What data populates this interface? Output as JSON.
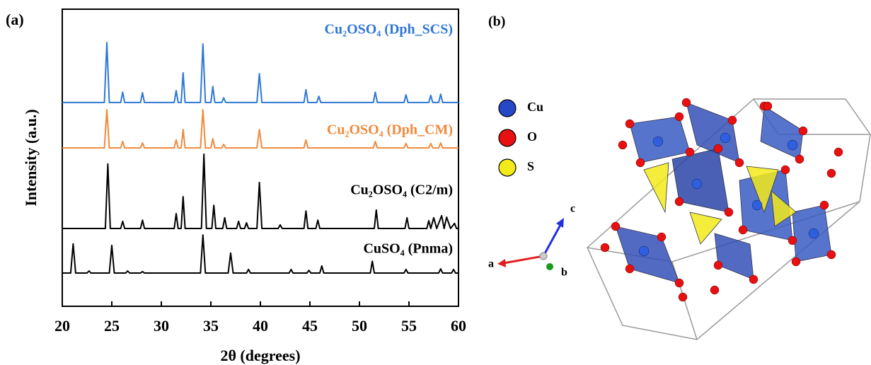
{
  "chart_data": {
    "type": "line",
    "panel_label": "(a)",
    "xlabel": "2θ (degrees)",
    "ylabel": "Intensity (a.u.)",
    "xlim": [
      20,
      60
    ],
    "xticks": [
      20,
      25,
      30,
      35,
      40,
      45,
      50,
      55,
      60
    ],
    "ylim": [
      0,
      100
    ],
    "series": [
      {
        "name": "Cu₂OSO₄ (Dph_SCS)",
        "color": "#2f78d6",
        "x": [
          20,
          24.25,
          24.5,
          24.75,
          25.9,
          26.1,
          26.3,
          27.9,
          28.1,
          28.3,
          31.3,
          31.5,
          31.7,
          32.0,
          32.2,
          32.4,
          33.95,
          34.2,
          34.45,
          35.0,
          35.2,
          35.4,
          36.1,
          36.3,
          36.5,
          39.65,
          39.9,
          40.15,
          44.4,
          44.6,
          44.8,
          45.7,
          45.9,
          46.1,
          51.4,
          51.6,
          51.8,
          54.5,
          54.7,
          54.9,
          57.0,
          57.2,
          57.4,
          58.0,
          58.2,
          58.4,
          60
        ],
        "values": [
          68.6,
          68.6,
          88.8,
          68.6,
          68.6,
          72.1,
          68.6,
          68.6,
          71.9,
          68.6,
          68.6,
          72.6,
          68.6,
          68.6,
          78.6,
          68.6,
          68.6,
          88.3,
          68.6,
          68.6,
          74.0,
          68.6,
          68.6,
          70.2,
          68.6,
          68.6,
          78.3,
          68.6,
          68.6,
          72.9,
          68.6,
          68.6,
          70.7,
          68.6,
          68.6,
          72.1,
          68.6,
          68.6,
          71.2,
          68.6,
          68.6,
          71.0,
          68.6,
          68.6,
          71.4,
          68.6,
          68.6
        ]
      },
      {
        "name": "Cu₂OSO₄ (Dph_CM)",
        "color": "#f08a3c",
        "x": [
          20,
          24.25,
          24.5,
          24.75,
          25.9,
          26.1,
          26.3,
          27.9,
          28.1,
          28.3,
          31.3,
          31.5,
          31.7,
          32.0,
          32.2,
          32.4,
          33.95,
          34.2,
          34.45,
          35.0,
          35.2,
          35.4,
          36.1,
          36.3,
          36.5,
          39.65,
          39.9,
          40.15,
          44.4,
          44.6,
          44.8,
          51.4,
          51.6,
          51.8,
          54.5,
          54.7,
          54.9,
          57.0,
          57.2,
          57.4,
          58.0,
          58.2,
          58.4,
          60
        ],
        "values": [
          53.3,
          53.3,
          66.2,
          53.3,
          53.3,
          55.5,
          53.3,
          53.3,
          55.0,
          53.3,
          53.3,
          56.0,
          53.3,
          53.3,
          59.5,
          53.3,
          53.3,
          66.2,
          53.3,
          53.3,
          56.4,
          53.3,
          53.3,
          54.5,
          53.3,
          53.3,
          59.5,
          53.3,
          53.3,
          56.0,
          53.3,
          53.3,
          55.5,
          53.3,
          53.3,
          54.8,
          53.3,
          53.3,
          54.8,
          53.3,
          53.3,
          55.0,
          53.3,
          53.3
        ]
      },
      {
        "name": "Cu₂OSO₄ (C2/m)",
        "color": "#000000",
        "x": [
          20,
          24.35,
          24.6,
          24.85,
          25.9,
          26.1,
          26.3,
          27.9,
          28.1,
          28.3,
          31.3,
          31.5,
          31.7,
          32.0,
          32.2,
          32.4,
          34.05,
          34.3,
          34.55,
          35.1,
          35.3,
          35.5,
          36.2,
          36.4,
          36.6,
          37.6,
          37.8,
          38.0,
          38.4,
          38.6,
          38.8,
          39.65,
          39.9,
          40.15,
          41.8,
          42.0,
          42.2,
          44.4,
          44.6,
          44.8,
          45.6,
          45.8,
          46.0,
          51.5,
          51.7,
          51.9,
          54.6,
          54.8,
          55.0,
          56.8,
          57.0,
          57.2,
          57.5,
          57.8,
          58.3,
          58.55,
          58.8,
          59.2,
          59.6,
          59.8,
          60
        ],
        "values": [
          26.2,
          26.2,
          47.9,
          26.2,
          26.2,
          28.6,
          26.2,
          26.2,
          29.0,
          26.2,
          26.2,
          31.2,
          26.2,
          26.2,
          36.9,
          26.2,
          26.2,
          51.2,
          26.2,
          26.2,
          34.0,
          26.2,
          26.2,
          29.8,
          26.2,
          26.2,
          28.6,
          26.2,
          26.2,
          28.1,
          26.2,
          26.2,
          41.7,
          26.2,
          26.2,
          27.4,
          26.2,
          26.2,
          32.1,
          26.2,
          26.2,
          29.0,
          26.2,
          26.2,
          32.4,
          26.2,
          26.2,
          29.8,
          26.2,
          26.2,
          28.8,
          26.2,
          29.8,
          26.2,
          30.5,
          26.2,
          30.0,
          26.2,
          27.9,
          26.2,
          26.2
        ]
      },
      {
        "name": "CuSO₄ (Pnma)",
        "color": "#000000",
        "x": [
          20,
          20.85,
          21.1,
          21.35,
          22.5,
          22.7,
          22.9,
          24.75,
          25.0,
          25.25,
          26.4,
          26.6,
          26.8,
          27.9,
          28.1,
          28.3,
          33.95,
          34.2,
          34.45,
          36.75,
          37.0,
          37.25,
          38.6,
          38.8,
          39.0,
          42.9,
          43.1,
          43.3,
          44.7,
          44.9,
          45.1,
          46.0,
          46.2,
          46.4,
          51.1,
          51.3,
          51.5,
          54.5,
          54.7,
          54.9,
          58.0,
          58.2,
          58.4,
          59.3,
          59.5,
          59.7,
          60
        ],
        "values": [
          11.2,
          11.2,
          21.0,
          11.2,
          11.2,
          11.9,
          11.2,
          11.2,
          20.5,
          11.2,
          11.2,
          11.9,
          11.2,
          11.2,
          11.7,
          11.2,
          11.2,
          24.0,
          11.2,
          11.2,
          17.9,
          11.2,
          11.2,
          12.4,
          11.2,
          11.2,
          12.4,
          11.2,
          11.2,
          12.1,
          11.2,
          11.2,
          13.6,
          11.2,
          11.2,
          15.2,
          11.2,
          11.2,
          12.4,
          11.2,
          11.2,
          12.6,
          11.2,
          11.2,
          12.4,
          11.2,
          11.2
        ]
      }
    ]
  },
  "structure": {
    "panel_label": "(b)",
    "legend": [
      {
        "label": "Cu",
        "color": "#2747c9"
      },
      {
        "label": "O",
        "color": "#e81010"
      },
      {
        "label": "S",
        "color": "#f2ea1a"
      }
    ],
    "axes": [
      "a",
      "b",
      "c"
    ]
  }
}
